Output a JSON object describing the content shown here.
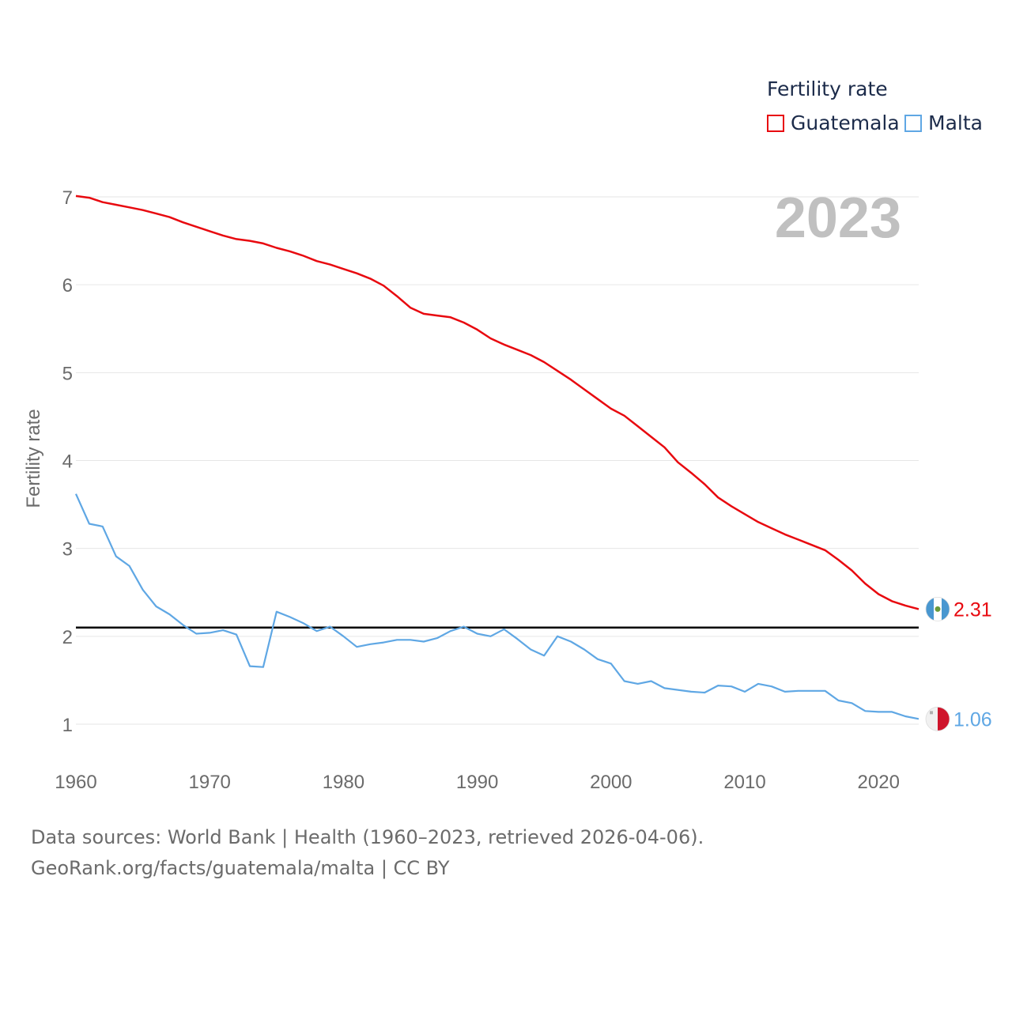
{
  "chart_data": {
    "type": "line",
    "title": "Fertility rate",
    "ylabel": "Fertility rate",
    "xlabel": "",
    "year_label": "2023",
    "xlim": [
      1960,
      2023
    ],
    "ylim": [
      0.4,
      7.3
    ],
    "yticks": [
      1,
      2,
      3,
      4,
      5,
      6,
      7
    ],
    "xticks": [
      1960,
      1970,
      1980,
      1990,
      2000,
      2010,
      2020
    ],
    "grid": true,
    "legend_position": "top-right",
    "reference_line": {
      "y": 2.1,
      "color": "#000000"
    },
    "x": [
      1960,
      1961,
      1962,
      1963,
      1964,
      1965,
      1966,
      1967,
      1968,
      1969,
      1970,
      1971,
      1972,
      1973,
      1974,
      1975,
      1976,
      1977,
      1978,
      1979,
      1980,
      1981,
      1982,
      1983,
      1984,
      1985,
      1986,
      1987,
      1988,
      1989,
      1990,
      1991,
      1992,
      1993,
      1994,
      1995,
      1996,
      1997,
      1998,
      1999,
      2000,
      2001,
      2002,
      2003,
      2004,
      2005,
      2006,
      2007,
      2008,
      2009,
      2010,
      2011,
      2012,
      2013,
      2014,
      2015,
      2016,
      2017,
      2018,
      2019,
      2020,
      2021,
      2022,
      2023
    ],
    "series": [
      {
        "name": "Guatemala",
        "color": "#e8090f",
        "end_label": "2.31",
        "values": [
          7.01,
          6.99,
          6.94,
          6.91,
          6.88,
          6.85,
          6.81,
          6.77,
          6.71,
          6.66,
          6.61,
          6.56,
          6.52,
          6.5,
          6.47,
          6.42,
          6.38,
          6.33,
          6.27,
          6.23,
          6.18,
          6.13,
          6.07,
          5.99,
          5.87,
          5.74,
          5.67,
          5.65,
          5.63,
          5.57,
          5.49,
          5.39,
          5.32,
          5.26,
          5.2,
          5.12,
          5.02,
          4.92,
          4.81,
          4.7,
          4.59,
          4.51,
          4.39,
          4.27,
          4.15,
          3.98,
          3.86,
          3.73,
          3.58,
          3.48,
          3.39,
          3.3,
          3.23,
          3.16,
          3.1,
          3.04,
          2.98,
          2.87,
          2.75,
          2.6,
          2.48,
          2.4,
          2.35,
          2.31
        ]
      },
      {
        "name": "Malta",
        "color": "#5fa7e4",
        "end_label": "1.06",
        "values": [
          3.62,
          3.28,
          3.25,
          2.91,
          2.8,
          2.53,
          2.34,
          2.25,
          2.13,
          2.03,
          2.04,
          2.07,
          2.02,
          1.66,
          1.65,
          2.28,
          2.22,
          2.15,
          2.06,
          2.11,
          2.0,
          1.88,
          1.91,
          1.93,
          1.96,
          1.96,
          1.94,
          1.98,
          2.06,
          2.11,
          2.03,
          2.0,
          2.08,
          1.97,
          1.85,
          1.78,
          2.0,
          1.94,
          1.85,
          1.74,
          1.69,
          1.49,
          1.46,
          1.49,
          1.41,
          1.39,
          1.37,
          1.36,
          1.44,
          1.43,
          1.37,
          1.46,
          1.43,
          1.37,
          1.38,
          1.38,
          1.38,
          1.27,
          1.24,
          1.15,
          1.14,
          1.14,
          1.09,
          1.06
        ]
      }
    ]
  },
  "footer": {
    "line1": "Data sources: World Bank | Health (1960–2023, retrieved 2026-04-06).",
    "line2": "GeoRank.org/facts/guatemala/malta | CC BY"
  },
  "icons": {
    "guatemala": "guatemala-flag-icon",
    "malta": "malta-flag-icon"
  }
}
